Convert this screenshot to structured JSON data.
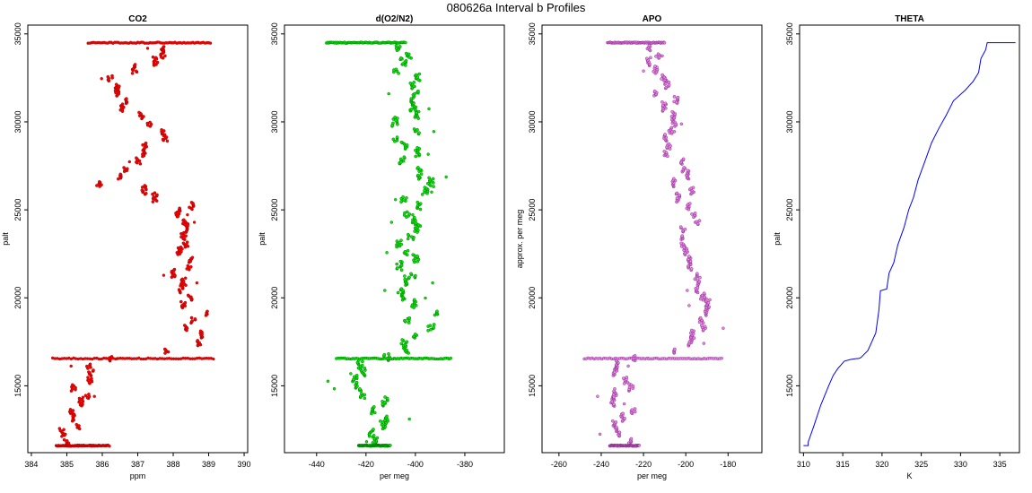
{
  "figure_title": "080626a   Interval b Profiles",
  "chart_data": [
    {
      "type": "scatter",
      "title": "CO2",
      "xlabel": "ppm",
      "ylabel": "palt",
      "xlim": [
        383.9,
        390.1
      ],
      "ylim": [
        11200,
        35500
      ],
      "xticks": [
        384,
        385,
        386,
        387,
        388,
        389,
        390
      ],
      "yticks": [
        15000,
        20000,
        25000,
        30000,
        35000
      ],
      "color": "#ff0000",
      "edge_color": "#8b0000",
      "level_bands": [
        {
          "y": 34500,
          "x_range": [
            385.6,
            389.1
          ]
        },
        {
          "y": 16550,
          "x_range": [
            384.6,
            389.2
          ]
        },
        {
          "y": 11600,
          "x_range": [
            384.7,
            386.2
          ]
        }
      ],
      "profile": [
        [
          11700,
          385.3
        ],
        [
          12500,
          385.0
        ],
        [
          13200,
          385.3
        ],
        [
          14000,
          385.4
        ],
        [
          14800,
          385.5
        ],
        [
          15500,
          385.6
        ],
        [
          16300,
          385.6
        ],
        [
          16600,
          386.9
        ],
        [
          17300,
          388.5
        ],
        [
          18200,
          388.6
        ],
        [
          19000,
          388.7
        ],
        [
          20000,
          388.4
        ],
        [
          21000,
          388.2
        ],
        [
          22000,
          388.4
        ],
        [
          23000,
          388.3
        ],
        [
          24000,
          388.2
        ],
        [
          25000,
          388.3
        ],
        [
          25600,
          387.6
        ],
        [
          26000,
          386.6
        ],
        [
          26500,
          385.9
        ],
        [
          27200,
          386.8
        ],
        [
          28000,
          387.2
        ],
        [
          28700,
          387.5
        ],
        [
          29500,
          387.6
        ],
        [
          30300,
          387.0
        ],
        [
          31000,
          386.7
        ],
        [
          31700,
          386.3
        ],
        [
          32500,
          386.5
        ],
        [
          33300,
          387.3
        ],
        [
          34000,
          387.6
        ],
        [
          34500,
          387.8
        ]
      ],
      "spread": 0.4
    },
    {
      "type": "scatter",
      "title": "d(O2/N2)",
      "xlabel": "per meg",
      "ylabel": "palt",
      "xlim": [
        -453,
        -364
      ],
      "ylim": [
        11200,
        35500
      ],
      "xticks": [
        -440,
        -420,
        -400,
        -380
      ],
      "yticks": [
        15000,
        20000,
        25000,
        30000,
        35000
      ],
      "color": "#00ee00",
      "edge_color": "#005500",
      "level_bands": [
        {
          "y": 34500,
          "x_range": [
            -436,
            -404
          ]
        },
        {
          "y": 16550,
          "x_range": [
            -432,
            -385
          ]
        },
        {
          "y": 11600,
          "x_range": [
            -423,
            -410
          ]
        }
      ],
      "profile": [
        [
          11700,
          -415
        ],
        [
          12500,
          -414
        ],
        [
          13300,
          -416
        ],
        [
          14000,
          -418
        ],
        [
          14800,
          -420
        ],
        [
          15500,
          -419
        ],
        [
          16300,
          -418
        ],
        [
          16600,
          -408
        ],
        [
          17300,
          -402
        ],
        [
          18200,
          -399
        ],
        [
          19000,
          -397
        ],
        [
          20000,
          -403
        ],
        [
          21000,
          -402
        ],
        [
          22000,
          -403
        ],
        [
          23000,
          -401
        ],
        [
          24000,
          -402
        ],
        [
          25000,
          -401
        ],
        [
          25600,
          -399
        ],
        [
          26500,
          -398
        ],
        [
          27200,
          -398
        ],
        [
          28000,
          -402
        ],
        [
          28700,
          -404
        ],
        [
          29500,
          -405
        ],
        [
          30300,
          -401
        ],
        [
          31000,
          -400
        ],
        [
          31800,
          -399
        ],
        [
          32500,
          -405
        ],
        [
          33300,
          -405
        ],
        [
          34000,
          -409
        ],
        [
          34500,
          -415
        ]
      ],
      "spread": 7
    },
    {
      "type": "scatter",
      "title": "APO",
      "xlabel": "per meg",
      "ylabel": "approx. per meg",
      "xlim": [
        -268,
        -164
      ],
      "ylim": [
        11200,
        35500
      ],
      "xticks": [
        -260,
        -240,
        -220,
        -200,
        -180
      ],
      "yticks": [
        15000,
        20000,
        25000,
        30000,
        35000
      ],
      "color": "#ee82ee",
      "edge_color": "#6a1b6a",
      "level_bands": [
        {
          "y": 34500,
          "x_range": [
            -237,
            -210
          ]
        },
        {
          "y": 16550,
          "x_range": [
            -248,
            -183
          ]
        },
        {
          "y": 11600,
          "x_range": [
            -236,
            -222
          ]
        }
      ],
      "profile": [
        [
          11700,
          -229
        ],
        [
          12500,
          -229
        ],
        [
          13300,
          -229
        ],
        [
          14000,
          -230
        ],
        [
          14800,
          -230
        ],
        [
          15500,
          -231
        ],
        [
          16300,
          -232
        ],
        [
          16600,
          -212
        ],
        [
          17300,
          -193
        ],
        [
          18200,
          -192
        ],
        [
          19000,
          -190
        ],
        [
          20000,
          -196
        ],
        [
          21000,
          -195
        ],
        [
          22000,
          -196
        ],
        [
          23000,
          -197
        ],
        [
          24000,
          -199
        ],
        [
          25000,
          -200
        ],
        [
          25600,
          -201
        ],
        [
          26500,
          -203
        ],
        [
          27200,
          -204
        ],
        [
          28000,
          -207
        ],
        [
          28700,
          -207
        ],
        [
          29500,
          -208
        ],
        [
          30300,
          -209
        ],
        [
          31000,
          -209
        ],
        [
          31800,
          -212
        ],
        [
          32500,
          -213
        ],
        [
          33300,
          -214
        ],
        [
          34000,
          -215
        ],
        [
          34500,
          -222
        ]
      ],
      "spread": 6
    },
    {
      "type": "line",
      "title": "THETA",
      "xlabel": "K",
      "ylabel": "palt",
      "xlim": [
        309.5,
        337.5
      ],
      "ylim": [
        11200,
        35500
      ],
      "xticks": [
        310,
        315,
        320,
        325,
        330,
        335
      ],
      "yticks": [
        15000,
        20000,
        25000,
        30000,
        35000
      ],
      "color": "#0000ff",
      "series": [
        [
          310.0,
          11600
        ],
        [
          310.6,
          11600
        ],
        [
          310.6,
          11800
        ],
        [
          311.3,
          12700
        ],
        [
          312.2,
          13900
        ],
        [
          313.2,
          15000
        ],
        [
          313.8,
          15600
        ],
        [
          314.4,
          16000
        ],
        [
          315.2,
          16400
        ],
        [
          316.0,
          16500
        ],
        [
          316.8,
          16550
        ],
        [
          317.0,
          16550
        ],
        [
          317.3,
          16600
        ],
        [
          318.2,
          17000
        ],
        [
          319.2,
          18000
        ],
        [
          319.6,
          19300
        ],
        [
          319.8,
          20400
        ],
        [
          320.6,
          20500
        ],
        [
          320.9,
          21400
        ],
        [
          321.5,
          22000
        ],
        [
          322.0,
          23000
        ],
        [
          322.8,
          24000
        ],
        [
          323.4,
          25000
        ],
        [
          324.0,
          25700
        ],
        [
          324.6,
          26700
        ],
        [
          325.5,
          27800
        ],
        [
          326.3,
          28800
        ],
        [
          327.2,
          29600
        ],
        [
          328.2,
          30400
        ],
        [
          329.1,
          31200
        ],
        [
          330.6,
          31800
        ],
        [
          331.6,
          32300
        ],
        [
          332.3,
          32800
        ],
        [
          332.6,
          33600
        ],
        [
          333.2,
          34100
        ],
        [
          333.4,
          34500
        ],
        [
          337.0,
          34500
        ]
      ]
    }
  ]
}
